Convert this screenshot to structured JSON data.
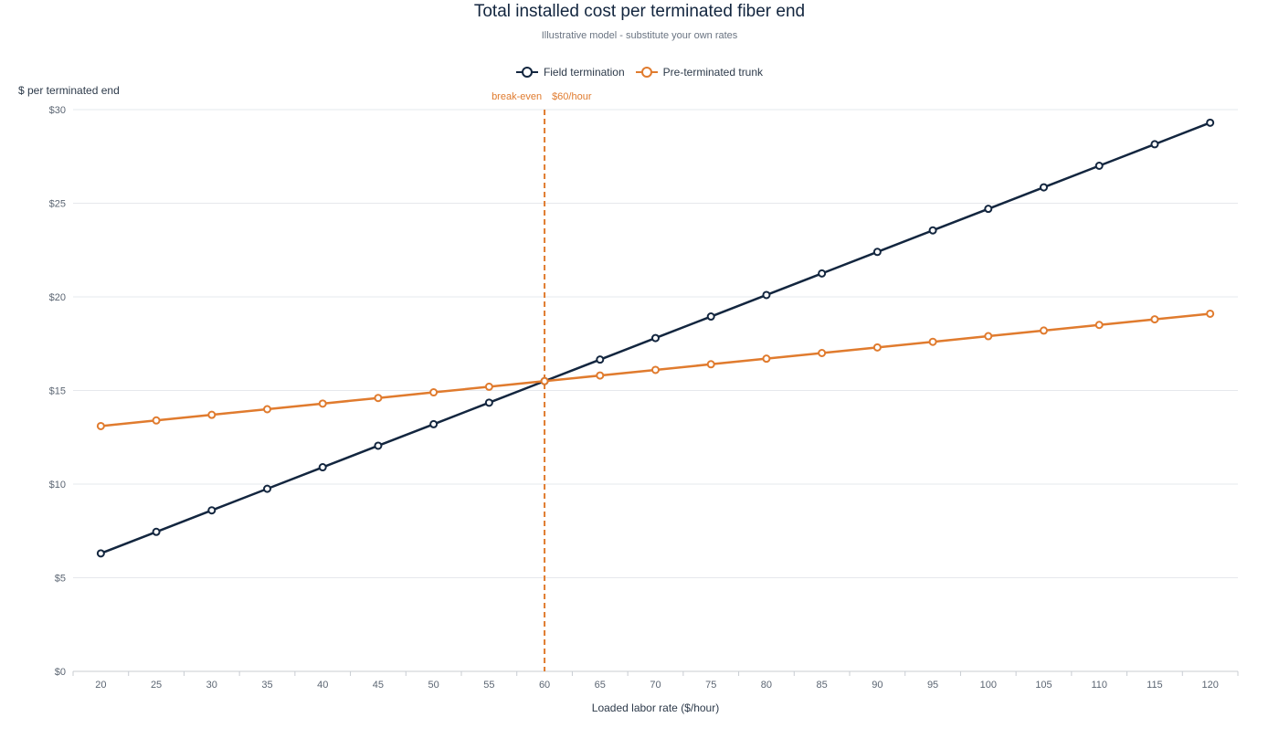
{
  "chart_data": {
    "type": "line",
    "title": "Total installed cost per terminated fiber end",
    "subtitle": "Illustrative model - substitute your own rates",
    "xlabel": "Loaded labor rate ($/hour)",
    "ylabel": "$ per terminated end",
    "x": [
      20,
      25,
      30,
      35,
      40,
      45,
      50,
      55,
      60,
      65,
      70,
      75,
      80,
      85,
      90,
      95,
      100,
      105,
      110,
      115,
      120
    ],
    "xlim": [
      17.5,
      122.5
    ],
    "ylim": [
      0,
      30
    ],
    "yticks": [
      0,
      5,
      10,
      15,
      20,
      25,
      30
    ],
    "ytick_labels": [
      "$0",
      "$5",
      "$10",
      "$15",
      "$20",
      "$25",
      "$30"
    ],
    "grid": true,
    "legend_position": "top-center",
    "series": [
      {
        "name": "Field termination",
        "color": "#13263f",
        "values": [
          6.3,
          7.45,
          8.6,
          9.75,
          10.9,
          12.05,
          13.2,
          14.35,
          15.5,
          16.65,
          17.8,
          18.95,
          20.1,
          21.25,
          22.4,
          23.55,
          24.7,
          25.85,
          27.0,
          28.15,
          29.3
        ]
      },
      {
        "name": "Pre-terminated trunk",
        "color": "#e07b2e",
        "values": [
          13.1,
          13.4,
          13.7,
          14.0,
          14.3,
          14.6,
          14.9,
          15.2,
          15.5,
          15.8,
          16.1,
          16.4,
          16.7,
          17.0,
          17.3,
          17.6,
          17.9,
          18.2,
          18.5,
          18.8,
          19.1
        ]
      }
    ],
    "annotations": [
      {
        "type": "vertical-line",
        "x": 60,
        "label": "break-even",
        "value_label": "$60/hour",
        "color": "#e07b2e"
      }
    ]
  }
}
